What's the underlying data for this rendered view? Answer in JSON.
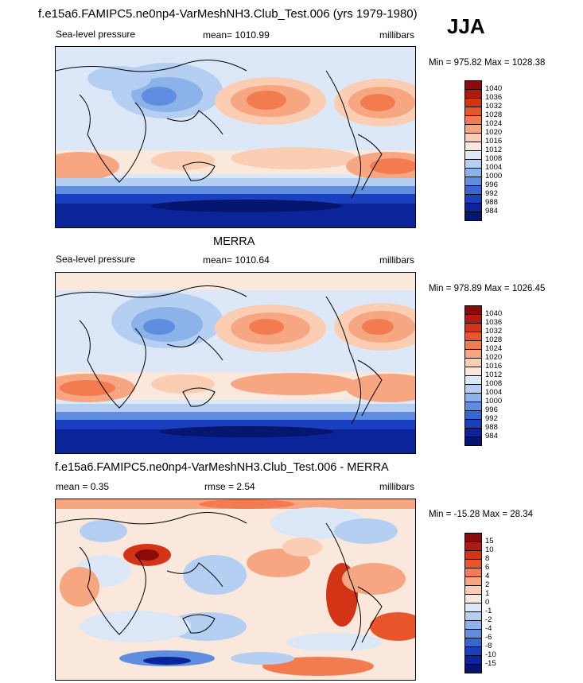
{
  "header": {
    "title": "f.e15a6.FAMIPC5.ne0np4-VarMeshNH3.Club_Test.006 (yrs 1979-1980)",
    "season": "JJA"
  },
  "panels": [
    {
      "heading": "",
      "left_label": "Sea-level pressure",
      "center_label": "mean= 1010.99",
      "right_label": "millibars",
      "minmax": "Min = 975.82 Max = 1028.38",
      "colorbar": {
        "labels": [
          "1040",
          "1036",
          "1032",
          "1028",
          "1024",
          "1020",
          "1016",
          "1012",
          "1008",
          "1004",
          "1000",
          "996",
          "992",
          "988",
          "984"
        ],
        "colors": [
          "#8b0a0a",
          "#b11a0e",
          "#d33415",
          "#e8552a",
          "#f27c50",
          "#f7a682",
          "#fbcdb3",
          "#fbe8dc",
          "#dce8f8",
          "#b4cff2",
          "#8cb2ea",
          "#5f8ee0",
          "#3566d4",
          "#1a40c0",
          "#0c249a",
          "#061570"
        ]
      }
    },
    {
      "heading": "MERRA",
      "left_label": "Sea-level pressure",
      "center_label": "mean= 1010.64",
      "right_label": "millibars",
      "minmax": "Min = 978.89 Max = 1026.45",
      "colorbar": {
        "labels": [
          "1040",
          "1036",
          "1032",
          "1028",
          "1024",
          "1020",
          "1016",
          "1012",
          "1008",
          "1004",
          "1000",
          "996",
          "992",
          "988",
          "984"
        ],
        "colors": [
          "#8b0a0a",
          "#b11a0e",
          "#d33415",
          "#e8552a",
          "#f27c50",
          "#f7a682",
          "#fbcdb3",
          "#fbe8dc",
          "#dce8f8",
          "#b4cff2",
          "#8cb2ea",
          "#5f8ee0",
          "#3566d4",
          "#1a40c0",
          "#0c249a",
          "#061570"
        ]
      }
    },
    {
      "heading": "f.e15a6.FAMIPC5.ne0np4-VarMeshNH3.Club_Test.006 - MERRA",
      "left_label": "mean =   0.35",
      "center_label": "rmse =   2.54",
      "right_label": "millibars",
      "minmax": "Min = -15.28 Max =  28.34",
      "colorbar": {
        "labels": [
          "15",
          "10",
          "8",
          "6",
          "4",
          "2",
          "1",
          "0",
          "-1",
          "-2",
          "-4",
          "-6",
          "-8",
          "-10",
          "-15"
        ],
        "colors": [
          "#8b0a0a",
          "#b11a0e",
          "#d33415",
          "#e8552a",
          "#f27c50",
          "#f7a682",
          "#fbcdb3",
          "#fbe8dc",
          "#dce8f8",
          "#b4cff2",
          "#8cb2ea",
          "#5f8ee0",
          "#3566d4",
          "#1a40c0",
          "#0c249a",
          "#061570"
        ]
      }
    }
  ],
  "chart_data": [
    {
      "type": "heatmap",
      "title": "Sea-level pressure",
      "subtitle": "f.e15a6.FAMIPC5.ne0np4-VarMeshNH3.Club_Test.006 (yrs 1979-1980) JJA",
      "units": "millibars",
      "mean": 1010.99,
      "min": 975.82,
      "max": 1028.38,
      "contour_levels": [
        984,
        988,
        992,
        996,
        1000,
        1004,
        1008,
        1012,
        1016,
        1020,
        1024,
        1028,
        1032,
        1036,
        1040
      ]
    },
    {
      "type": "heatmap",
      "title": "MERRA Sea-level pressure",
      "units": "millibars",
      "mean": 1010.64,
      "min": 978.89,
      "max": 1026.45,
      "contour_levels": [
        984,
        988,
        992,
        996,
        1000,
        1004,
        1008,
        1012,
        1016,
        1020,
        1024,
        1028,
        1032,
        1036,
        1040
      ]
    },
    {
      "type": "heatmap",
      "title": "f.e15a6.FAMIPC5.ne0np4-VarMeshNH3.Club_Test.006 - MERRA",
      "units": "millibars",
      "mean": 0.35,
      "rmse": 2.54,
      "min": -15.28,
      "max": 28.34,
      "contour_levels": [
        -15,
        -10,
        -8,
        -6,
        -4,
        -2,
        -1,
        0,
        1,
        2,
        4,
        6,
        8,
        10,
        15
      ]
    }
  ]
}
